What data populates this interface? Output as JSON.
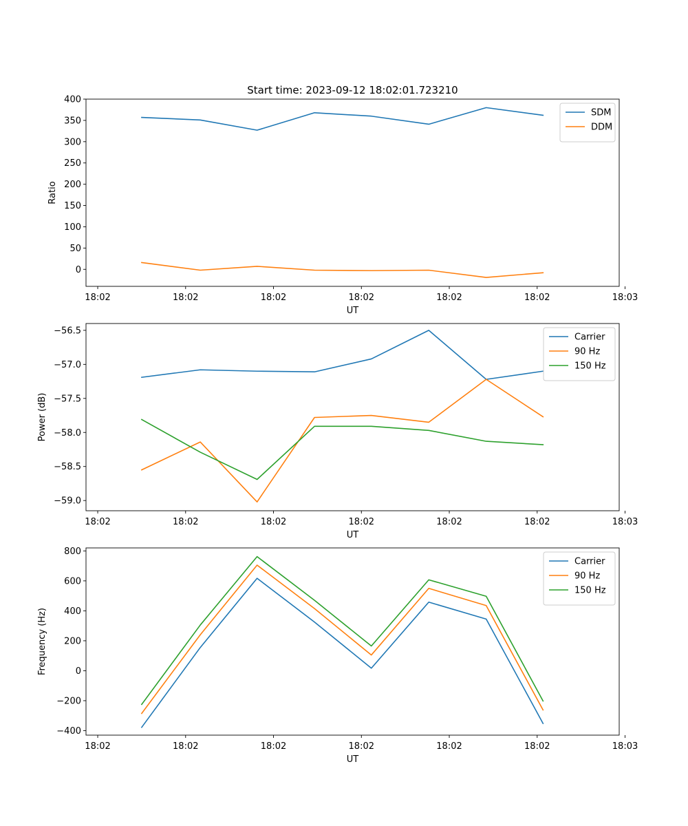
{
  "chart_data": [
    {
      "type": "line",
      "title": "Start time: 2023-09-12 18:02:01.723210",
      "xlabel": "UT",
      "ylabel": "Ratio",
      "ylim": [
        -40,
        400
      ],
      "xlim": [
        -0.2,
        8.9
      ],
      "yticks": [
        0,
        50,
        100,
        150,
        200,
        250,
        300,
        350,
        400
      ],
      "ytick_labels": [
        "0",
        "50",
        "100",
        "150",
        "200",
        "250",
        "300",
        "350",
        "400"
      ],
      "xticks": [
        0,
        1.5,
        3,
        4.5,
        6,
        7.5,
        9
      ],
      "xtick_labels": [
        "18:02",
        "18:02",
        "18:02",
        "18:02",
        "18:02",
        "18:02",
        "18:03"
      ],
      "grid": false,
      "legend": "top-right",
      "x": [
        0.75,
        1.75,
        2.72,
        3.7,
        4.67,
        5.65,
        6.63,
        7.6
      ],
      "series": [
        {
          "name": "SDM",
          "color": "#1f77b4",
          "values": [
            357,
            351,
            327,
            368,
            360,
            341,
            380,
            362
          ]
        },
        {
          "name": "DDM",
          "color": "#ff7f0e",
          "values": [
            16,
            -2,
            7,
            -2,
            -3,
            -2,
            -19,
            -8
          ]
        }
      ]
    },
    {
      "type": "line",
      "title": "",
      "xlabel": "UT",
      "ylabel": "Power (dB)",
      "ylim": [
        -59.15,
        -56.4
      ],
      "xlim": [
        -0.2,
        8.9
      ],
      "yticks": [
        -59.0,
        -58.5,
        -58.0,
        -57.5,
        -57.0,
        -56.5
      ],
      "ytick_labels": [
        "−59.0",
        "−58.5",
        "−58.0",
        "−57.5",
        "−57.0",
        "−56.5"
      ],
      "xticks": [
        0,
        1.5,
        3,
        4.5,
        6,
        7.5,
        9
      ],
      "xtick_labels": [
        "18:02",
        "18:02",
        "18:02",
        "18:02",
        "18:02",
        "18:02",
        "18:03"
      ],
      "grid": false,
      "legend": "top-right",
      "x": [
        0.75,
        1.75,
        2.72,
        3.7,
        4.67,
        5.65,
        6.63,
        7.6
      ],
      "series": [
        {
          "name": "Carrier",
          "color": "#1f77b4",
          "values": [
            -57.19,
            -57.08,
            -57.1,
            -57.11,
            -56.92,
            -56.5,
            -57.22,
            -57.1
          ]
        },
        {
          "name": "90 Hz",
          "color": "#ff7f0e",
          "values": [
            -58.55,
            -58.14,
            -59.02,
            -57.78,
            -57.75,
            -57.85,
            -57.22,
            -57.77
          ]
        },
        {
          "name": "150 Hz",
          "color": "#2ca02c",
          "values": [
            -57.81,
            -58.29,
            -58.69,
            -57.91,
            -57.91,
            -57.97,
            -58.13,
            -58.18
          ]
        }
      ]
    },
    {
      "type": "line",
      "title": "",
      "xlabel": "UT",
      "ylabel": "Frequency (Hz)",
      "ylim": [
        -430,
        820
      ],
      "xlim": [
        -0.2,
        8.9
      ],
      "yticks": [
        -400,
        -200,
        0,
        200,
        400,
        600,
        800
      ],
      "ytick_labels": [
        "−400",
        "−200",
        "0",
        "200",
        "400",
        "600",
        "800"
      ],
      "xticks": [
        0,
        1.5,
        3,
        4.5,
        6,
        7.5,
        9
      ],
      "xtick_labels": [
        "18:02",
        "18:02",
        "18:02",
        "18:02",
        "18:02",
        "18:02",
        "18:03"
      ],
      "grid": false,
      "legend": "top-right",
      "x": [
        0.75,
        1.75,
        2.72,
        3.7,
        4.67,
        5.65,
        6.63,
        7.6
      ],
      "series": [
        {
          "name": "Carrier",
          "color": "#1f77b4",
          "values": [
            -378,
            155,
            617,
            325,
            17,
            458,
            345,
            -352
          ]
        },
        {
          "name": "90 Hz",
          "color": "#ff7f0e",
          "values": [
            -285,
            240,
            705,
            415,
            105,
            550,
            435,
            -262
          ]
        },
        {
          "name": "150 Hz",
          "color": "#2ca02c",
          "values": [
            -225,
            305,
            762,
            470,
            165,
            607,
            497,
            -202
          ]
        }
      ]
    }
  ]
}
